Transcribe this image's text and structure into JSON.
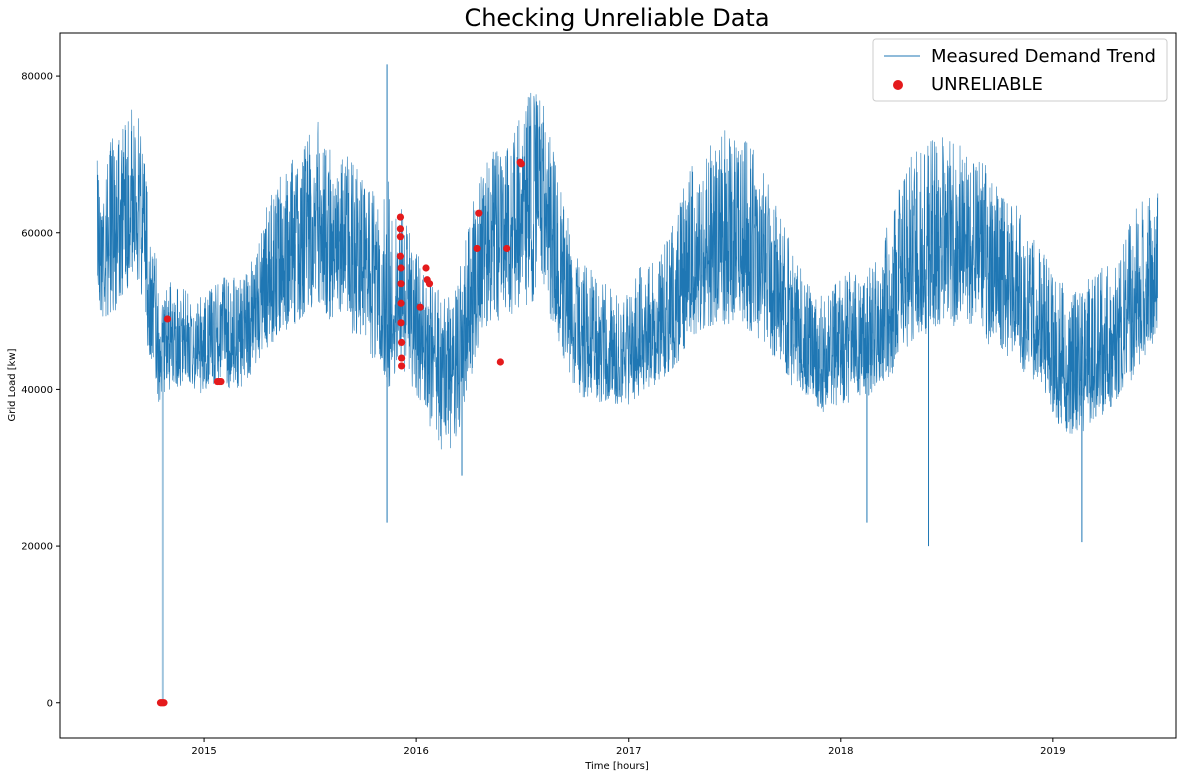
{
  "chart_data": {
    "type": "line",
    "title": "Checking Unreliable Data",
    "xlabel": "Time [hours]",
    "ylabel": "Grid Load [kw]",
    "xlim": [
      "2014-04-28",
      "2019-08-01"
    ],
    "ylim": [
      -4500,
      85500
    ],
    "x_ticks": [
      "2015",
      "2016",
      "2017",
      "2018",
      "2019"
    ],
    "y_ticks": [
      0,
      20000,
      40000,
      60000,
      80000
    ],
    "grid": false,
    "legend_position": "top-right",
    "series": [
      {
        "name": "Measured Demand Trend",
        "kind": "line",
        "color": "#1f77b4",
        "x": [
          "2014-07-01",
          "2014-07-15",
          "2014-08-01",
          "2014-08-15",
          "2014-09-01",
          "2014-09-15",
          "2014-10-01",
          "2014-10-15",
          "2014-10-22",
          "2014-10-26",
          "2014-10-28",
          "2014-11-01",
          "2014-11-15",
          "2014-12-01",
          "2014-12-15",
          "2015-01-01",
          "2015-01-15",
          "2015-02-01",
          "2015-02-15",
          "2015-03-01",
          "2015-03-15",
          "2015-04-01",
          "2015-04-15",
          "2015-05-01",
          "2015-05-15",
          "2015-06-01",
          "2015-06-15",
          "2015-07-01",
          "2015-07-15",
          "2015-08-01",
          "2015-08-15",
          "2015-09-01",
          "2015-09-15",
          "2015-10-01",
          "2015-10-15",
          "2015-11-01",
          "2015-11-15",
          "2015-12-01",
          "2015-12-15",
          "2016-01-01",
          "2016-01-15",
          "2016-02-01",
          "2016-02-15",
          "2016-03-01",
          "2016-03-15",
          "2016-04-01",
          "2016-04-15",
          "2016-05-01",
          "2016-05-15",
          "2016-06-01",
          "2016-06-15",
          "2016-07-01",
          "2016-07-15",
          "2016-08-01",
          "2016-08-15",
          "2016-09-01",
          "2016-09-15",
          "2016-10-01",
          "2016-10-15",
          "2016-11-01",
          "2016-11-15",
          "2016-12-01",
          "2016-12-15",
          "2017-01-01",
          "2017-01-15",
          "2017-02-01",
          "2017-02-15",
          "2017-03-01",
          "2017-03-15",
          "2017-04-01",
          "2017-04-15",
          "2017-05-01",
          "2017-05-15",
          "2017-06-01",
          "2017-06-15",
          "2017-07-01",
          "2017-07-15",
          "2017-08-01",
          "2017-08-15",
          "2017-09-01",
          "2017-09-15",
          "2017-10-01",
          "2017-10-15",
          "2017-11-01",
          "2017-11-15",
          "2017-12-01",
          "2017-12-15",
          "2018-01-01",
          "2018-01-15",
          "2018-02-01",
          "2018-02-15",
          "2018-03-01",
          "2018-03-15",
          "2018-04-01",
          "2018-04-15",
          "2018-05-01",
          "2018-05-15",
          "2018-06-01",
          "2018-06-15",
          "2018-07-01",
          "2018-07-15",
          "2018-08-01",
          "2018-08-15",
          "2018-09-01",
          "2018-09-15",
          "2018-10-01",
          "2018-10-15",
          "2018-11-01",
          "2018-11-15",
          "2018-12-01",
          "2018-12-15",
          "2019-01-01",
          "2019-01-15",
          "2019-02-01",
          "2019-02-15",
          "2019-03-01",
          "2019-03-15",
          "2019-04-01",
          "2019-04-15",
          "2019-05-01",
          "2019-05-15",
          "2019-06-01",
          "2019-06-15",
          "2019-07-01"
        ],
        "y_mean": [
          60000,
          58000,
          62000,
          63000,
          66000,
          64000,
          52000,
          47000,
          46000,
          45000,
          46000,
          47000,
          46000,
          46000,
          45000,
          45000,
          46000,
          47000,
          46000,
          46000,
          47000,
          50000,
          53000,
          55000,
          56000,
          58000,
          58000,
          60000,
          62000,
          59000,
          58000,
          58000,
          57000,
          56000,
          54000,
          50000,
          48000,
          52000,
          49000,
          46000,
          46000,
          44000,
          42000,
          41000,
          44000,
          50000,
          55000,
          58000,
          59000,
          58000,
          60000,
          61000,
          62000,
          63000,
          60000,
          56000,
          52000,
          48000,
          46000,
          45000,
          44000,
          43000,
          43000,
          44000,
          45000,
          47000,
          46000,
          48000,
          50000,
          53000,
          55000,
          56000,
          57000,
          56000,
          58000,
          58000,
          57000,
          56000,
          55000,
          53000,
          51000,
          48000,
          46000,
          44000,
          43000,
          42000,
          43000,
          44000,
          45000,
          45000,
          44000,
          46000,
          48000,
          50000,
          53000,
          55000,
          56000,
          57000,
          58000,
          59000,
          58000,
          59000,
          57000,
          56000,
          53000,
          52000,
          51000,
          50000,
          49000,
          48000,
          46000,
          43000,
          42000,
          41000,
          41000,
          42000,
          43000,
          44000,
          45000,
          47000,
          49000,
          52000,
          54000,
          56000
        ],
        "y_high": [
          70000,
          68000,
          75000,
          74000,
          77000,
          74000,
          62000,
          56000,
          54000,
          52000,
          54000,
          54000,
          53000,
          53000,
          52000,
          52000,
          53000,
          55000,
          55000,
          54000,
          55000,
          58000,
          63000,
          66000,
          68000,
          70000,
          70000,
          74000,
          76000,
          72000,
          68000,
          70000,
          69000,
          67000,
          66000,
          63000,
          68000,
          66000,
          61000,
          58000,
          56000,
          54000,
          52000,
          52000,
          55000,
          62000,
          66000,
          69000,
          71000,
          70000,
          73000,
          75000,
          78000,
          78000,
          74000,
          68000,
          63000,
          58000,
          56000,
          55000,
          54000,
          53000,
          52000,
          53000,
          55000,
          57000,
          56000,
          58000,
          61000,
          65000,
          68000,
          70000,
          72000,
          71000,
          73000,
          75000,
          74000,
          71000,
          69000,
          66000,
          63000,
          60000,
          57000,
          55000,
          53000,
          52000,
          53000,
          54000,
          55000,
          55000,
          55000,
          57000,
          60000,
          63000,
          67000,
          70000,
          71000,
          72000,
          72000,
          73000,
          72000,
          73000,
          71000,
          70000,
          67000,
          66000,
          65000,
          64000,
          61000,
          59000,
          58000,
          55000,
          54000,
          52000,
          53000,
          54000,
          55000,
          56000,
          57000,
          59000,
          62000,
          64000,
          65000,
          66000
        ],
        "y_low": [
          50000,
          48000,
          50000,
          52000,
          54000,
          52000,
          42000,
          38000,
          40000,
          39000,
          40000,
          40000,
          40000,
          40000,
          40000,
          39000,
          40000,
          41000,
          40000,
          40000,
          41000,
          43000,
          45000,
          46000,
          47000,
          48000,
          48000,
          50000,
          51000,
          49000,
          48000,
          48000,
          47000,
          46000,
          44000,
          42000,
          40000,
          43000,
          42000,
          39000,
          38000,
          33000,
          31000,
          32000,
          35000,
          40000,
          45000,
          48000,
          49000,
          48000,
          49000,
          50000,
          51000,
          52000,
          50000,
          46000,
          43000,
          40000,
          39000,
          39000,
          38000,
          38000,
          38000,
          38000,
          39000,
          40000,
          40000,
          41000,
          42000,
          44000,
          46000,
          47000,
          48000,
          47000,
          48000,
          48000,
          48000,
          47000,
          46000,
          45000,
          43000,
          41000,
          40000,
          39000,
          38000,
          37000,
          38000,
          38000,
          38000,
          39000,
          38000,
          39000,
          41000,
          42000,
          44000,
          46000,
          47000,
          47000,
          48000,
          49000,
          48000,
          49000,
          48000,
          47000,
          45000,
          44000,
          44000,
          43000,
          42000,
          41000,
          40000,
          37000,
          35000,
          34000,
          34000,
          35000,
          36000,
          37000,
          38000,
          40000,
          41000,
          43000,
          45000,
          47000
        ],
        "events": [
          {
            "x": "2014-10-22",
            "y": 0
          },
          {
            "x": "2015-11-12",
            "y": 81500
          },
          {
            "x": "2015-11-12",
            "y": 23000
          },
          {
            "x": "2016-03-20",
            "y": 29000
          },
          {
            "x": "2018-02-15",
            "y": 23000
          },
          {
            "x": "2018-06-01",
            "y": 20000
          },
          {
            "x": "2019-02-20",
            "y": 20500
          }
        ]
      },
      {
        "name": "UNRELIABLE",
        "kind": "scatter",
        "color": "#e41a1c",
        "points": [
          {
            "x": "2014-10-18",
            "y": 0
          },
          {
            "x": "2014-10-20",
            "y": 0
          },
          {
            "x": "2014-10-22",
            "y": 0
          },
          {
            "x": "2014-10-24",
            "y": 0
          },
          {
            "x": "2014-10-30",
            "y": 49000
          },
          {
            "x": "2015-01-24",
            "y": 41000
          },
          {
            "x": "2015-01-27",
            "y": 41000
          },
          {
            "x": "2015-01-30",
            "y": 41000
          },
          {
            "x": "2015-12-05",
            "y": 62000
          },
          {
            "x": "2015-12-05",
            "y": 60500
          },
          {
            "x": "2015-12-05",
            "y": 59500
          },
          {
            "x": "2015-12-05",
            "y": 57000
          },
          {
            "x": "2015-12-06",
            "y": 55500
          },
          {
            "x": "2015-12-06",
            "y": 53500
          },
          {
            "x": "2015-12-06",
            "y": 51000
          },
          {
            "x": "2015-12-06",
            "y": 48500
          },
          {
            "x": "2015-12-07",
            "y": 46000
          },
          {
            "x": "2015-12-07",
            "y": 44000
          },
          {
            "x": "2015-12-07",
            "y": 43000
          },
          {
            "x": "2016-01-08",
            "y": 50500
          },
          {
            "x": "2016-01-18",
            "y": 55500
          },
          {
            "x": "2016-01-20",
            "y": 54000
          },
          {
            "x": "2016-01-24",
            "y": 53500
          },
          {
            "x": "2016-04-15",
            "y": 58000
          },
          {
            "x": "2016-04-18",
            "y": 62500
          },
          {
            "x": "2016-05-25",
            "y": 43500
          },
          {
            "x": "2016-06-05",
            "y": 58000
          },
          {
            "x": "2016-06-28",
            "y": 69000
          },
          {
            "x": "2016-06-30",
            "y": 68800
          }
        ]
      }
    ]
  }
}
